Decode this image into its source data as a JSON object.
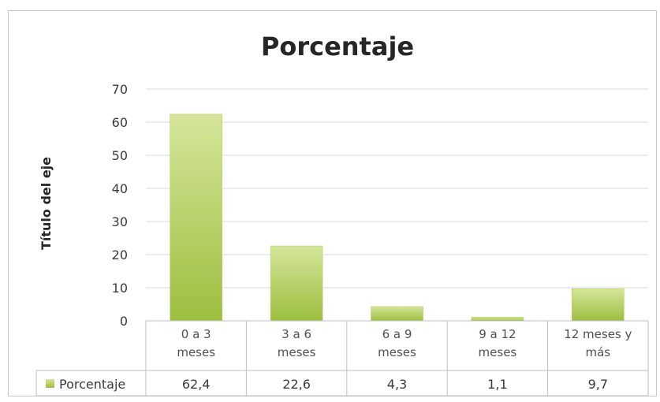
{
  "chart_data": {
    "type": "bar",
    "title": "Porcentaje",
    "ylabel": "Título del eje",
    "xlabel": "",
    "categories": [
      [
        "0 a 3",
        "meses"
      ],
      [
        "3 a 6",
        "meses"
      ],
      [
        "6 a 9",
        "meses"
      ],
      [
        "9 a 12",
        "meses"
      ],
      [
        "12 meses y",
        "más"
      ]
    ],
    "series": [
      {
        "name": "Porcentaje",
        "values": [
          62.4,
          22.6,
          4.3,
          1.1,
          9.7
        ]
      }
    ],
    "data_table": {
      "legend_label": "Porcentaje",
      "cells": [
        "62,4",
        "22,6",
        "4,3",
        "1,1",
        "9,7"
      ]
    },
    "ylim": [
      0,
      70
    ],
    "yticks": [
      0,
      10,
      20,
      30,
      40,
      50,
      60,
      70
    ],
    "grid": true,
    "legend_position": "data-table",
    "colors": {
      "bar_top": "#d6e59a",
      "bar_bottom": "#9cbf3f",
      "grid": "#d9d9d9",
      "axis": "#bfbfbf"
    }
  }
}
